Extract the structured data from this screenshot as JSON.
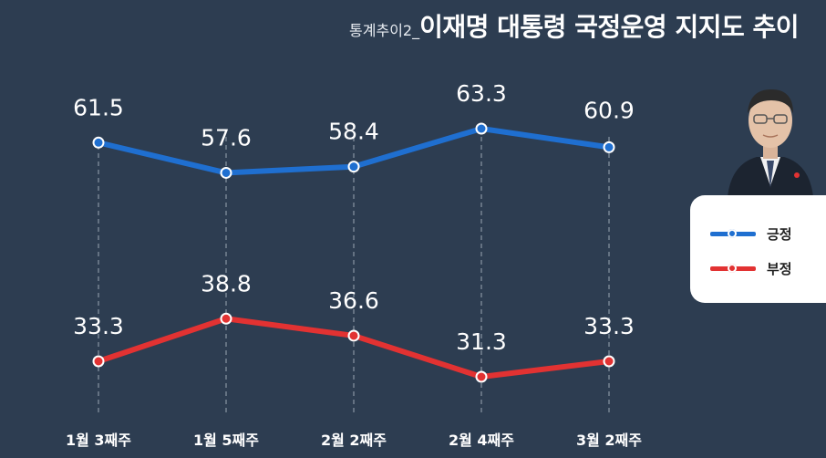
{
  "title": {
    "prefix": "통계추이2_",
    "main": "이재명 대통령 국정운영 지지도 추이"
  },
  "colors": {
    "background": "#2d3d51",
    "approve": "#1f6fd0",
    "disapprove": "#e23232",
    "text": "#ffffff"
  },
  "portrait": {
    "icon": "portrait-photo"
  },
  "chart_data": {
    "type": "line",
    "categories": [
      "1월 3째주",
      "1월 5째주",
      "2월 2째주",
      "2월 4째주",
      "3월 2째주"
    ],
    "series": [
      {
        "name": "긍정",
        "values": [
          61.5,
          57.6,
          58.4,
          63.3,
          60.9
        ]
      },
      {
        "name": "부정",
        "values": [
          33.3,
          38.8,
          36.6,
          31.3,
          33.3
        ]
      }
    ],
    "title": "이재명 대통령 국정운영 지지도 추이",
    "xlabel": "",
    "ylabel": "",
    "grid": "vertical dashed",
    "legend": "right"
  }
}
